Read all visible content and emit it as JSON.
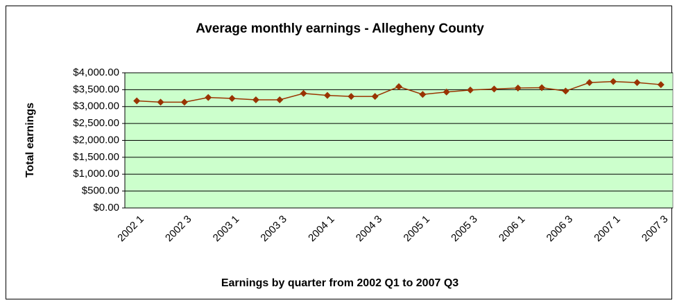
{
  "chart_data": {
    "type": "line",
    "title": "Average monthly earnings - Allegheny County",
    "x_label": "Earnings by quarter from 2002 Q1 to 2007 Q3",
    "y_label": "Total earnings",
    "categories": [
      "2002 1",
      null,
      "2002 3",
      null,
      "2003 1",
      null,
      "2003 3",
      null,
      "2004 1",
      null,
      "2004 3",
      null,
      "2005 1",
      null,
      "2005 3",
      null,
      "2006 1",
      null,
      "2006 3",
      null,
      "2007 1",
      null,
      "2007 3"
    ],
    "values": [
      3170,
      3130,
      3130,
      3270,
      3240,
      3200,
      3200,
      3390,
      3330,
      3300,
      3300,
      3590,
      3360,
      3430,
      3490,
      3520,
      3550,
      3560,
      3460,
      3710,
      3740,
      3710,
      3650
    ],
    "color": "#993300",
    "plot_background": "#ccffcc",
    "ylim": [
      0,
      4000
    ],
    "yticks": [
      {
        "value": 0,
        "label": "$0.00"
      },
      {
        "value": 500,
        "label": "$500.00"
      },
      {
        "value": 1000,
        "label": "$1,000.00"
      },
      {
        "value": 1500,
        "label": "$1,500.00"
      },
      {
        "value": 2000,
        "label": "$2,000.00"
      },
      {
        "value": 2500,
        "label": "$2,500.00"
      },
      {
        "value": 3000,
        "label": "$3,000.00"
      },
      {
        "value": 3500,
        "label": "$3,500.00"
      },
      {
        "value": 4000,
        "label": "$4,000.00"
      }
    ],
    "grid": true
  }
}
